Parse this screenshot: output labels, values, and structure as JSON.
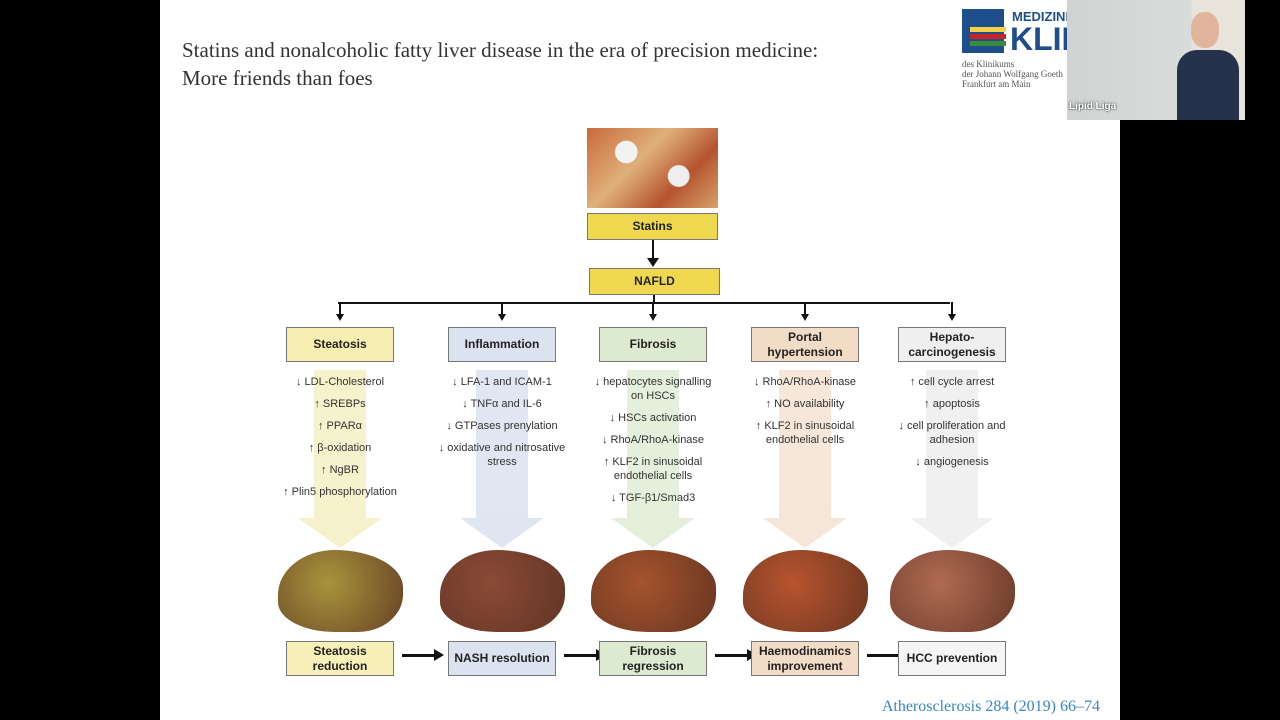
{
  "slide": {
    "title_line1": "Statins and nonalcoholic fatty liver disease in the era of precision medicine:",
    "title_line2": "More friends than foes",
    "logo": {
      "line1": "MEDIZINI",
      "line2": "KLIN",
      "sub1": "des Klinikums",
      "sub2": "der Johann Wolfgang Goeth",
      "sub3": "Frankfurt am Main"
    },
    "statins": "Statins",
    "nafld": "NAFLD",
    "columns": [
      {
        "title": "Steatosis",
        "color": "#f5eeb0",
        "arrow": "#efe7a0",
        "items": [
          "↓ LDL-Cholesterol",
          "↑ SREBPs",
          "↑ PPARα",
          "↑ β-oxidation",
          "↑ NgBR",
          "↑ Plin5 phosphorylation"
        ],
        "outcome": "Steatosis reduction",
        "outcome_color": "#f7f0b8"
      },
      {
        "title": "Inflammation",
        "color": "#dbe3f1",
        "arrow": "#c6d2e8",
        "items": [
          "↓ LFA-1 and ICAM-1",
          "↓ TNFα and IL-6",
          "↓ GTPases prenylation",
          "↓ oxidative and nitrosative stress"
        ],
        "outcome": "NASH resolution",
        "outcome_color": "#dbe3f1"
      },
      {
        "title": "Fibrosis",
        "color": "#dcebd0",
        "arrow": "#cde3bd",
        "items": [
          "↓ hepatocytes signalling on HSCs",
          "↓ HSCs activation",
          "↓ RhoA/RhoA-kinase",
          "↑ KLF2 in sinusoidal endothelial cells",
          "↓ TGF-β1/Smad3"
        ],
        "outcome": "Fibrosis regression",
        "outcome_color": "#dcebd0"
      },
      {
        "title": "Portal hypertension",
        "color": "#f2dcc6",
        "arrow": "#efd3b8",
        "items": [
          "↓ RhoA/RhoA-kinase",
          "↑ NO availability",
          "↑ KLF2 in sinusoidal endothelial cells"
        ],
        "outcome": "Haemodinamics improvement",
        "outcome_color": "#f2dcc6"
      },
      {
        "title": "Hepato-carcinogenesis",
        "color": "#efefef",
        "arrow": "#e4e4e4",
        "items": [
          "↑ cell cycle arrest",
          "↑ apoptosis",
          "↓ cell proliferation and adhesion",
          "↓ angiogenesis"
        ],
        "outcome": "HCC prevention",
        "outcome_color": "#f5f5f5"
      }
    ],
    "citation": "Atherosclerosis 284 (2019) 66–74"
  },
  "webcam": {
    "label": "Lipid Liga"
  }
}
